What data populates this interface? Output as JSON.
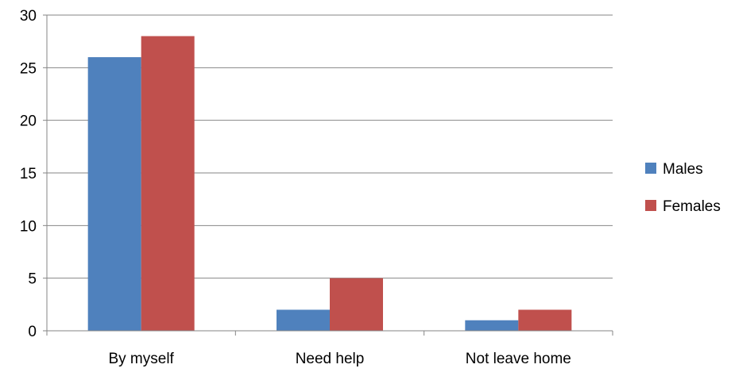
{
  "chart_data": {
    "type": "bar",
    "title": "",
    "xlabel": "",
    "ylabel": "",
    "categories": [
      "By myself",
      "Need help",
      "Not leave home"
    ],
    "series": [
      {
        "name": "Males",
        "values": [
          26,
          2,
          1
        ],
        "color": "#4f81bd"
      },
      {
        "name": "Females",
        "values": [
          28,
          5,
          2
        ],
        "color": "#c0504d"
      }
    ],
    "ylim": [
      0,
      30
    ],
    "yticks": [
      "0",
      "5",
      "10",
      "15",
      "20",
      "25",
      "30"
    ],
    "grid": "horizontal",
    "legend_position": "right"
  }
}
